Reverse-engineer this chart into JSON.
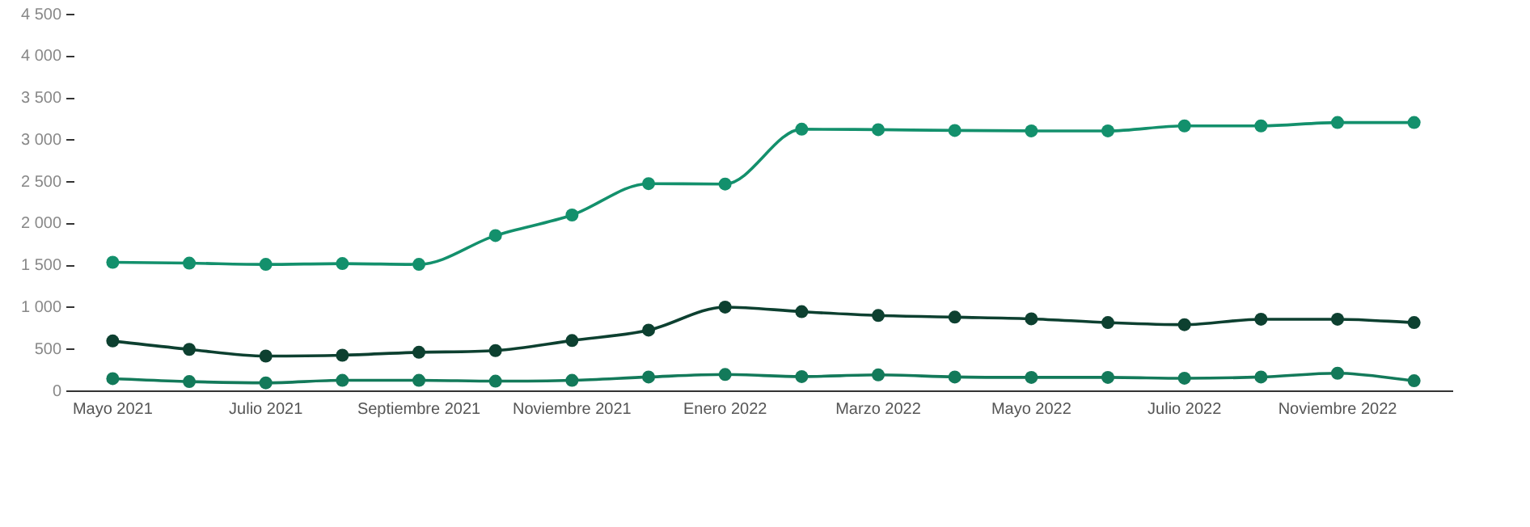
{
  "chart_data": {
    "type": "line",
    "categories": [
      "Mayo 2021",
      null,
      "Julio 2021",
      null,
      "Septiembre 2021",
      null,
      "Noviembre 2021",
      null,
      "Enero 2022",
      null,
      "Marzo 2022",
      null,
      "Mayo 2022",
      null,
      "Julio 2022",
      null,
      "Noviembre 2022",
      null
    ],
    "series": [
      {
        "color": "#13906c",
        "values": [
          1540,
          1530,
          1515,
          1525,
          1515,
          1860,
          2105,
          2480,
          2475,
          3130,
          3125,
          3115,
          3110,
          3110,
          3170,
          3170,
          3210,
          3210
        ]
      },
      {
        "color": "#0d4030",
        "values": [
          600,
          500,
          420,
          430,
          465,
          485,
          605,
          730,
          1005,
          950,
          905,
          885,
          865,
          820,
          795,
          860,
          860,
          820
        ]
      },
      {
        "color": "#137a5a",
        "values": [
          150,
          115,
          100,
          130,
          130,
          120,
          130,
          170,
          200,
          175,
          195,
          170,
          165,
          165,
          155,
          170,
          215,
          125
        ]
      }
    ],
    "ylim": [
      0,
      4500
    ],
    "yticks": [
      0,
      500,
      {
        "value": 1000,
        "label": "1 000"
      },
      {
        "value": 1500,
        "label": "1 500"
      },
      {
        "value": 2000,
        "label": "2 000"
      },
      {
        "value": 2500,
        "label": "2 500"
      },
      {
        "value": 3000,
        "label": "3 000"
      },
      {
        "value": 3500,
        "label": "3 500"
      },
      {
        "value": 4000,
        "label": "4 000"
      },
      {
        "value": 4500,
        "label": "4 500"
      }
    ],
    "grid": false,
    "legend": false,
    "marker": "circle",
    "line_style": "solid"
  }
}
